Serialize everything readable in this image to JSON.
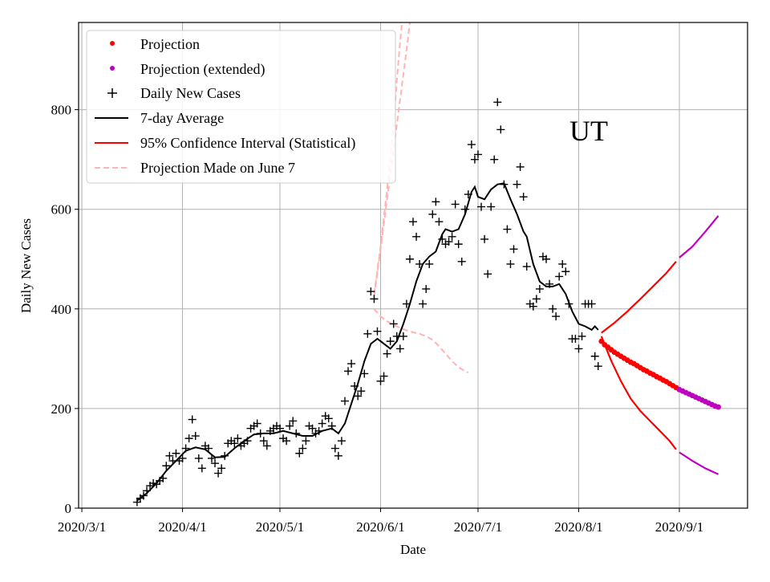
{
  "chart_data": {
    "type": "line",
    "state_label": "UT",
    "xlabel": "Date",
    "ylabel": "Daily New Cases",
    "x_ticks": [
      "2020/3/1",
      "2020/4/1",
      "2020/5/1",
      "2020/6/1",
      "2020/7/1",
      "2020/8/1",
      "2020/9/1"
    ],
    "y_ticks": [
      0,
      200,
      400,
      600,
      800
    ],
    "xlim_days": [
      -1,
      205
    ],
    "ylim": [
      0,
      975
    ],
    "grid": true,
    "legend_position": "top-left",
    "x_unit": "days since 2020-03-01",
    "legend": [
      {
        "label": "Projection",
        "color": "#ff0000",
        "marker": "dot"
      },
      {
        "label": "Projection (extended)",
        "color": "#bf00bf",
        "marker": "dot"
      },
      {
        "label": "Daily New Cases",
        "color": "#000000",
        "marker": "plus"
      },
      {
        "label": "7-day Average",
        "color": "#000000",
        "marker": "line"
      },
      {
        "label": "95% Confidence Interval (Statistical)",
        "color": "#ff0000",
        "marker": "line"
      },
      {
        "label": "Projection Made on June 7",
        "color": "#ffb3b3",
        "marker": "dashed"
      }
    ],
    "series": [
      {
        "name": "Daily New Cases",
        "color": "#000000",
        "points": [
          [
            17,
            12
          ],
          [
            18,
            20
          ],
          [
            19,
            25
          ],
          [
            20,
            35
          ],
          [
            21,
            45
          ],
          [
            22,
            50
          ],
          [
            23,
            48
          ],
          [
            24,
            55
          ],
          [
            25,
            60
          ],
          [
            26,
            85
          ],
          [
            27,
            105
          ],
          [
            28,
            95
          ],
          [
            29,
            110
          ],
          [
            30,
            95
          ],
          [
            31,
            100
          ],
          [
            32,
            120
          ],
          [
            33,
            140
          ],
          [
            34,
            178
          ],
          [
            35,
            145
          ],
          [
            36,
            100
          ],
          [
            37,
            80
          ],
          [
            38,
            125
          ],
          [
            39,
            120
          ],
          [
            40,
            100
          ],
          [
            41,
            90
          ],
          [
            42,
            70
          ],
          [
            43,
            80
          ],
          [
            44,
            105
          ],
          [
            45,
            130
          ],
          [
            46,
            135
          ],
          [
            47,
            130
          ],
          [
            48,
            140
          ],
          [
            49,
            125
          ],
          [
            50,
            130
          ],
          [
            51,
            135
          ],
          [
            52,
            160
          ],
          [
            53,
            165
          ],
          [
            54,
            170
          ],
          [
            55,
            150
          ],
          [
            56,
            135
          ],
          [
            57,
            125
          ],
          [
            58,
            155
          ],
          [
            59,
            160
          ],
          [
            60,
            165
          ],
          [
            61,
            160
          ],
          [
            62,
            140
          ],
          [
            63,
            135
          ],
          [
            64,
            165
          ],
          [
            65,
            175
          ],
          [
            66,
            150
          ],
          [
            67,
            110
          ],
          [
            68,
            120
          ],
          [
            69,
            135
          ],
          [
            70,
            165
          ],
          [
            71,
            160
          ],
          [
            72,
            150
          ],
          [
            73,
            155
          ],
          [
            74,
            170
          ],
          [
            75,
            185
          ],
          [
            76,
            180
          ],
          [
            77,
            165
          ],
          [
            78,
            120
          ],
          [
            79,
            105
          ],
          [
            80,
            135
          ],
          [
            81,
            215
          ],
          [
            82,
            275
          ],
          [
            83,
            290
          ],
          [
            84,
            245
          ],
          [
            85,
            225
          ],
          [
            86,
            235
          ],
          [
            87,
            270
          ],
          [
            88,
            350
          ],
          [
            89,
            435
          ],
          [
            90,
            420
          ],
          [
            91,
            355
          ],
          [
            92,
            255
          ],
          [
            93,
            265
          ],
          [
            94,
            310
          ],
          [
            95,
            335
          ],
          [
            96,
            370
          ],
          [
            97,
            345
          ],
          [
            98,
            320
          ],
          [
            99,
            345
          ],
          [
            100,
            410
          ],
          [
            101,
            500
          ],
          [
            102,
            575
          ],
          [
            103,
            545
          ],
          [
            104,
            490
          ],
          [
            105,
            410
          ],
          [
            106,
            440
          ],
          [
            107,
            490
          ],
          [
            108,
            590
          ],
          [
            109,
            615
          ],
          [
            110,
            575
          ],
          [
            111,
            540
          ],
          [
            112,
            530
          ],
          [
            113,
            535
          ],
          [
            114,
            545
          ],
          [
            115,
            610
          ],
          [
            116,
            530
          ],
          [
            117,
            495
          ],
          [
            118,
            600
          ],
          [
            119,
            630
          ],
          [
            120,
            730
          ],
          [
            121,
            700
          ],
          [
            122,
            710
          ],
          [
            123,
            605
          ],
          [
            124,
            540
          ],
          [
            125,
            470
          ],
          [
            126,
            605
          ],
          [
            127,
            700
          ],
          [
            128,
            815
          ],
          [
            129,
            760
          ],
          [
            130,
            650
          ],
          [
            131,
            560
          ],
          [
            132,
            490
          ],
          [
            133,
            520
          ],
          [
            134,
            650
          ],
          [
            135,
            685
          ],
          [
            136,
            625
          ],
          [
            137,
            485
          ],
          [
            138,
            410
          ],
          [
            139,
            405
          ],
          [
            140,
            420
          ],
          [
            141,
            440
          ],
          [
            142,
            505
          ],
          [
            143,
            500
          ],
          [
            144,
            450
          ],
          [
            145,
            400
          ],
          [
            146,
            385
          ],
          [
            147,
            465
          ],
          [
            148,
            490
          ],
          [
            149,
            475
          ],
          [
            150,
            410
          ],
          [
            151,
            340
          ],
          [
            152,
            340
          ],
          [
            153,
            320
          ],
          [
            154,
            345
          ],
          [
            155,
            410
          ],
          [
            156,
            410
          ],
          [
            157,
            410
          ],
          [
            158,
            305
          ],
          [
            159,
            285
          ]
        ]
      },
      {
        "name": "7-day Average",
        "color": "#000000",
        "points": [
          [
            17,
            15
          ],
          [
            20,
            30
          ],
          [
            23,
            50
          ],
          [
            26,
            75
          ],
          [
            29,
            95
          ],
          [
            32,
            115
          ],
          [
            35,
            122
          ],
          [
            38,
            118
          ],
          [
            41,
            102
          ],
          [
            44,
            103
          ],
          [
            47,
            120
          ],
          [
            50,
            135
          ],
          [
            53,
            148
          ],
          [
            56,
            150
          ],
          [
            59,
            150
          ],
          [
            62,
            155
          ],
          [
            65,
            150
          ],
          [
            68,
            145
          ],
          [
            71,
            145
          ],
          [
            74,
            155
          ],
          [
            77,
            160
          ],
          [
            79,
            150
          ],
          [
            81,
            170
          ],
          [
            83,
            210
          ],
          [
            85,
            250
          ],
          [
            87,
            295
          ],
          [
            89,
            330
          ],
          [
            91,
            340
          ],
          [
            93,
            330
          ],
          [
            95,
            320
          ],
          [
            97,
            335
          ],
          [
            99,
            370
          ],
          [
            101,
            410
          ],
          [
            103,
            455
          ],
          [
            105,
            490
          ],
          [
            107,
            505
          ],
          [
            109,
            515
          ],
          [
            111,
            550
          ],
          [
            112,
            560
          ],
          [
            114,
            555
          ],
          [
            116,
            560
          ],
          [
            118,
            590
          ],
          [
            120,
            635
          ],
          [
            121,
            645
          ],
          [
            122,
            625
          ],
          [
            124,
            620
          ],
          [
            126,
            640
          ],
          [
            128,
            650
          ],
          [
            130,
            652
          ],
          [
            132,
            620
          ],
          [
            134,
            590
          ],
          [
            136,
            555
          ],
          [
            137,
            545
          ],
          [
            139,
            490
          ],
          [
            141,
            455
          ],
          [
            143,
            445
          ],
          [
            145,
            445
          ],
          [
            147,
            450
          ],
          [
            149,
            430
          ],
          [
            151,
            395
          ],
          [
            153,
            370
          ],
          [
            155,
            365
          ],
          [
            157,
            358
          ],
          [
            158,
            365
          ],
          [
            159,
            358
          ]
        ]
      },
      {
        "name": "Projection",
        "color": "#ff0000",
        "points": [
          [
            160,
            335
          ],
          [
            161,
            328
          ],
          [
            162,
            323
          ],
          [
            163,
            318
          ],
          [
            164,
            313
          ],
          [
            165,
            309
          ],
          [
            166,
            305
          ],
          [
            167,
            301
          ],
          [
            168,
            297
          ],
          [
            169,
            293
          ],
          [
            170,
            290
          ],
          [
            171,
            286
          ],
          [
            172,
            282
          ],
          [
            173,
            278
          ],
          [
            174,
            275
          ],
          [
            175,
            271
          ],
          [
            176,
            268
          ],
          [
            177,
            264
          ],
          [
            178,
            261
          ],
          [
            179,
            257
          ],
          [
            180,
            254
          ],
          [
            181,
            250
          ],
          [
            182,
            246
          ],
          [
            183,
            242
          ]
        ]
      },
      {
        "name": "Projection (extended)",
        "color": "#bf00bf",
        "points": [
          [
            184,
            238
          ],
          [
            185,
            235
          ],
          [
            186,
            232
          ],
          [
            187,
            229
          ],
          [
            188,
            226
          ],
          [
            189,
            223
          ],
          [
            190,
            220
          ],
          [
            191,
            217
          ],
          [
            192,
            214
          ],
          [
            193,
            211
          ],
          [
            194,
            208
          ],
          [
            195,
            205
          ],
          [
            196,
            203
          ]
        ]
      },
      {
        "name": "95% CI Upper",
        "color": "#ff0000",
        "points": [
          [
            160,
            352
          ],
          [
            164,
            372
          ],
          [
            168,
            395
          ],
          [
            172,
            420
          ],
          [
            176,
            446
          ],
          [
            180,
            472
          ],
          [
            183,
            495
          ]
        ]
      },
      {
        "name": "95% CI Lower",
        "color": "#ff0000",
        "points": [
          [
            160,
            345
          ],
          [
            163,
            296
          ],
          [
            166,
            255
          ],
          [
            169,
            220
          ],
          [
            172,
            195
          ],
          [
            175,
            175
          ],
          [
            178,
            155
          ],
          [
            181,
            135
          ],
          [
            183,
            118
          ]
        ]
      },
      {
        "name": "95% CI Upper (extended)",
        "color": "#bf00bf",
        "points": [
          [
            184,
            503
          ],
          [
            188,
            525
          ],
          [
            192,
            555
          ],
          [
            196,
            587
          ]
        ]
      },
      {
        "name": "95% CI Lower (extended)",
        "color": "#bf00bf",
        "points": [
          [
            184,
            112
          ],
          [
            188,
            95
          ],
          [
            192,
            80
          ],
          [
            196,
            68
          ]
        ]
      },
      {
        "name": "Projection Made on June 7",
        "color": "#ffb3b3",
        "dashed": true,
        "lines": [
          [
            [
              90,
              425
            ],
            [
              92,
              520
            ],
            [
              94,
              620
            ],
            [
              96,
              720
            ],
            [
              98,
              820
            ],
            [
              100,
              920
            ],
            [
              101,
              975
            ]
          ],
          [
            [
              90,
              430
            ],
            [
              92,
              525
            ],
            [
              94,
              640
            ],
            [
              96,
              770
            ],
            [
              97,
              860
            ],
            [
              98,
              935
            ],
            [
              98.6,
              975
            ]
          ],
          [
            [
              90,
              400
            ],
            [
              92,
              385
            ],
            [
              94,
              375
            ],
            [
              96,
              368
            ],
            [
              98,
              362
            ],
            [
              100,
              357
            ],
            [
              102,
              353
            ],
            [
              104,
              350
            ],
            [
              106,
              345
            ],
            [
              108,
              338
            ],
            [
              110,
              325
            ],
            [
              112,
              310
            ],
            [
              114,
              295
            ],
            [
              116,
              283
            ],
            [
              118,
              275
            ],
            [
              119,
              272
            ]
          ]
        ]
      }
    ]
  }
}
